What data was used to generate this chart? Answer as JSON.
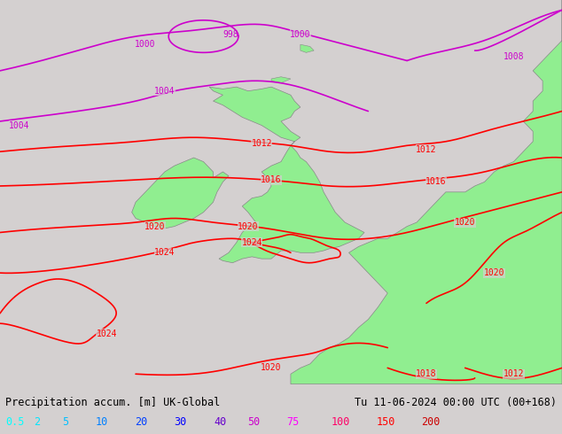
{
  "title_left": "Precipitation accum. [m] UK-Global",
  "title_right": "Tu 11-06-2024 00:00 UTC (00+168)",
  "legend_values": [
    "0.5",
    "2",
    "5",
    "10",
    "20",
    "30",
    "40",
    "50",
    "75",
    "100",
    "150",
    "200"
  ],
  "legend_colors": [
    "#00ffff",
    "#00e5ff",
    "#00bfff",
    "#0080ff",
    "#0040ff",
    "#0000ff",
    "#6600cc",
    "#cc00cc",
    "#ff00ff",
    "#ff0066",
    "#ff0000",
    "#cc0000"
  ],
  "bg_color": "#d4d0d0",
  "land_color": "#90ee90",
  "sea_color": "#d4d0d0",
  "isobar_color_magenta": "#cc00cc",
  "isobar_color_red": "#ff0000",
  "coastline_color": "#888888",
  "figwidth": 6.34,
  "figheight": 4.9,
  "dpi": 100,
  "bottom_bar_color": "#ffffff",
  "title_fontsize": 8.5,
  "legend_fontsize": 8.5,
  "lon_min": -17.0,
  "lon_max": 12.0,
  "lat_min": 44.0,
  "lat_max": 63.0
}
